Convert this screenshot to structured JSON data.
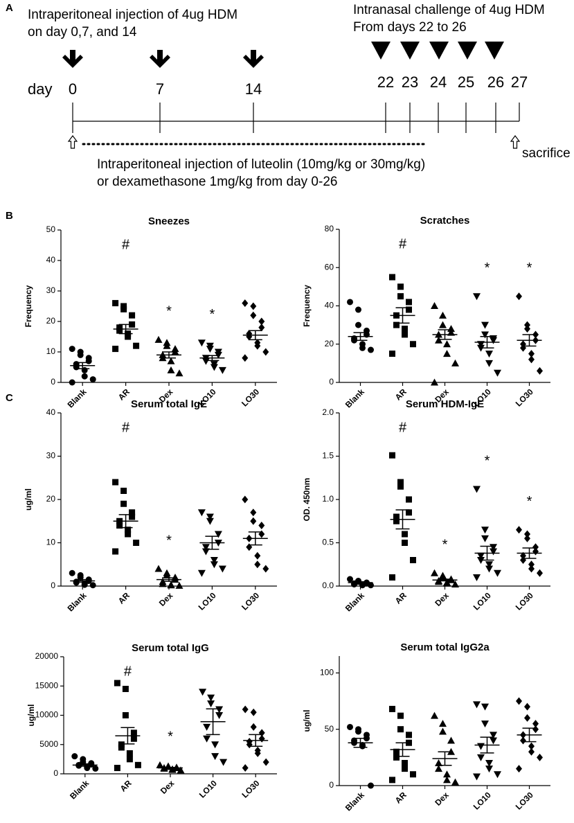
{
  "panels": [
    "A",
    "B",
    "C"
  ],
  "timeline": {
    "title_left": [
      "Intraperitoneal injection of 4ug HDM",
      "on day 0,7, and 14"
    ],
    "title_right": [
      "Intranasal challenge of 4ug HDM",
      "From days 22 to 26"
    ],
    "day_label": "day",
    "days": [
      0,
      7,
      14,
      22,
      23,
      24,
      25,
      26,
      27
    ],
    "bottom_text": [
      "Intraperitoneal injection of luteolin (10mg/kg or 30mg/kg)",
      "or dexamethasone 1mg/kg from day 0-26"
    ],
    "end_label": "sacrifice"
  },
  "chart_data": [
    {
      "type": "dot",
      "title": "Sneezes",
      "y_label": "Frequency",
      "categories": [
        "Blank",
        "AR",
        "Dex",
        "LO10",
        "LO30"
      ],
      "markers": [
        "circle",
        "square",
        "triangle",
        "triangle-down",
        "diamond"
      ],
      "color": "#000000",
      "values": [
        [
          11,
          10,
          9,
          8,
          7,
          6,
          5,
          4,
          2,
          1,
          0
        ],
        [
          26,
          25,
          24,
          22,
          19,
          18,
          17,
          16,
          15,
          12,
          11
        ],
        [
          14,
          13,
          12,
          11,
          10,
          9,
          8,
          7,
          4,
          3
        ],
        [
          13,
          12,
          11,
          10,
          9,
          8,
          7,
          6,
          5,
          4
        ],
        [
          26,
          25,
          22,
          20,
          18,
          16,
          15,
          13,
          12,
          10,
          8
        ]
      ],
      "means": [
        5.5,
        17.5,
        9,
        8,
        15.5
      ],
      "sems": [
        1,
        1.5,
        1,
        0.8,
        1.5
      ],
      "annotations": [
        null,
        "#",
        "*",
        "*",
        null
      ],
      "ylim": [
        0,
        50
      ],
      "yticks": [
        0,
        10,
        20,
        30,
        40,
        50
      ]
    },
    {
      "type": "dot",
      "title": "Scratches",
      "y_label": "Frequency",
      "categories": [
        "Blank",
        "AR",
        "Dex",
        "LO10",
        "LO30"
      ],
      "markers": [
        "circle",
        "square",
        "triangle",
        "triangle-down",
        "diamond"
      ],
      "color": "#000000",
      "values": [
        [
          42,
          38,
          30,
          27,
          25,
          23,
          22,
          20,
          18,
          17
        ],
        [
          55,
          50,
          45,
          42,
          38,
          35,
          30,
          28,
          25,
          20,
          15
        ],
        [
          40,
          35,
          30,
          28,
          26,
          25,
          22,
          20,
          15,
          10,
          0
        ],
        [
          45,
          30,
          25,
          23,
          22,
          20,
          18,
          15,
          10,
          5
        ],
        [
          45,
          30,
          28,
          25,
          22,
          20,
          18,
          15,
          12,
          6
        ]
      ],
      "means": [
        24,
        35,
        25,
        21,
        22
      ],
      "sems": [
        2,
        4,
        2.5,
        3,
        3
      ],
      "annotations": [
        null,
        "#",
        null,
        "*",
        "*"
      ],
      "ylim": [
        0,
        80
      ],
      "yticks": [
        0,
        20,
        40,
        60,
        80
      ]
    },
    {
      "type": "dot",
      "title": "Serum total IgE",
      "y_label": "ug/ml",
      "categories": [
        "Blank",
        "AR",
        "Dex",
        "LO10",
        "LO30"
      ],
      "markers": [
        "circle",
        "square",
        "triangle",
        "triangle-down",
        "diamond"
      ],
      "color": "#000000",
      "values": [
        [
          3,
          2.5,
          2,
          1.5,
          1.2,
          1,
          0.8,
          0.5,
          0.3,
          0.2
        ],
        [
          24,
          22,
          19,
          17,
          16,
          15,
          14,
          13,
          12,
          10,
          8
        ],
        [
          4,
          3,
          2.5,
          2,
          1.5,
          1,
          0.5,
          0.3,
          0.2,
          0.1
        ],
        [
          17,
          16,
          15,
          12,
          10,
          9,
          8,
          6,
          5,
          4,
          3
        ],
        [
          20,
          17,
          15,
          14,
          12,
          11,
          9,
          7,
          5,
          4
        ]
      ],
      "means": [
        1.2,
        15,
        1.5,
        10,
        11
      ],
      "sems": [
        0.3,
        1.5,
        0.4,
        1.5,
        1.5
      ],
      "annotations": [
        null,
        "#",
        "*",
        null,
        null
      ],
      "ylim": [
        0,
        40
      ],
      "yticks": [
        0,
        10,
        20,
        30,
        40
      ]
    },
    {
      "type": "dot",
      "title": "Serum HDM-IgE",
      "y_label": "OD. 450nm",
      "categories": [
        "Blank",
        "AR",
        "Dex",
        "LO10",
        "LO30"
      ],
      "markers": [
        "circle",
        "square",
        "triangle",
        "triangle-down",
        "diamond"
      ],
      "color": "#000000",
      "values": [
        [
          0.08,
          0.06,
          0.05,
          0.04,
          0.03,
          0.03,
          0.02,
          0.02,
          0.01,
          0.01
        ],
        [
          1.51,
          1.2,
          1.15,
          1.0,
          0.85,
          0.8,
          0.75,
          0.6,
          0.5,
          0.3,
          0.1
        ],
        [
          0.15,
          0.12,
          0.1,
          0.08,
          0.07,
          0.06,
          0.05,
          0.04,
          0.03,
          0.02
        ],
        [
          1.12,
          0.65,
          0.55,
          0.45,
          0.4,
          0.35,
          0.3,
          0.25,
          0.2,
          0.15,
          0.1
        ],
        [
          0.65,
          0.6,
          0.55,
          0.45,
          0.4,
          0.35,
          0.3,
          0.25,
          0.2,
          0.15
        ]
      ],
      "means": [
        0.04,
        0.77,
        0.07,
        0.38,
        0.38
      ],
      "sems": [
        0.01,
        0.11,
        0.01,
        0.08,
        0.06
      ],
      "annotations": [
        null,
        "#",
        "*",
        "*",
        "*"
      ],
      "ylim": [
        0,
        2
      ],
      "yticks": [
        {
          "value": 0,
          "label": "0.0"
        },
        {
          "value": 0.5,
          "label": "0.5"
        },
        {
          "value": 1,
          "label": "1.0"
        },
        {
          "value": 1.5,
          "label": "1.5"
        },
        {
          "value": 2,
          "label": "2.0"
        }
      ]
    },
    {
      "type": "dot",
      "title": "Serum total IgG",
      "y_label": "ug/ml",
      "categories": [
        "Blank",
        "AR",
        "Dex",
        "LO10",
        "LO30"
      ],
      "markers": [
        "circle",
        "square",
        "triangle",
        "triangle-down",
        "diamond"
      ],
      "color": "#000000",
      "values": [
        [
          3000,
          2500,
          2000,
          1800,
          1600,
          1500,
          1400,
          1200,
          1000,
          900
        ],
        [
          15500,
          14500,
          10000,
          7000,
          6000,
          5000,
          4500,
          3500,
          2500,
          1500,
          1000
        ],
        [
          1500,
          1300,
          1200,
          1100,
          1000,
          1000,
          900,
          800,
          700,
          600
        ],
        [
          14000,
          13000,
          12000,
          11000,
          10000,
          8000,
          6000,
          5000,
          3000,
          2000
        ],
        [
          11000,
          10500,
          8000,
          7000,
          6000,
          5500,
          5000,
          4000,
          3500,
          2000,
          1000
        ]
      ],
      "means": [
        1500,
        6500,
        1000,
        8900,
        5700
      ],
      "sems": [
        200,
        1400,
        100,
        2200,
        1000
      ],
      "annotations": [
        null,
        "#",
        "*",
        null,
        null
      ],
      "ylim": [
        0,
        20000
      ],
      "yticks": [
        0,
        5000,
        10000,
        15000,
        20000
      ]
    },
    {
      "type": "dot",
      "title": "Serum total IgG2a",
      "y_label": "ug/ml",
      "categories": [
        "Blank",
        "AR",
        "Dex",
        "LO10",
        "LO30"
      ],
      "markers": [
        "circle",
        "square",
        "triangle",
        "triangle-down",
        "diamond"
      ],
      "color": "#000000",
      "values": [
        [
          52,
          50,
          48,
          45,
          42,
          40,
          38,
          36,
          35,
          0
        ],
        [
          68,
          62,
          50,
          45,
          38,
          30,
          25,
          20,
          15,
          10,
          5
        ],
        [
          62,
          55,
          48,
          40,
          30,
          20,
          15,
          10,
          5,
          3
        ],
        [
          72,
          70,
          55,
          45,
          40,
          35,
          25,
          20,
          15,
          10,
          8
        ],
        [
          75,
          70,
          60,
          55,
          50,
          45,
          40,
          35,
          30,
          25,
          15
        ]
      ],
      "means": [
        38,
        32,
        24,
        36,
        45
      ],
      "sems": [
        4,
        6,
        6,
        7,
        6
      ],
      "ylim": [
        0,
        115
      ],
      "yticks": [
        0,
        50,
        100
      ]
    }
  ]
}
